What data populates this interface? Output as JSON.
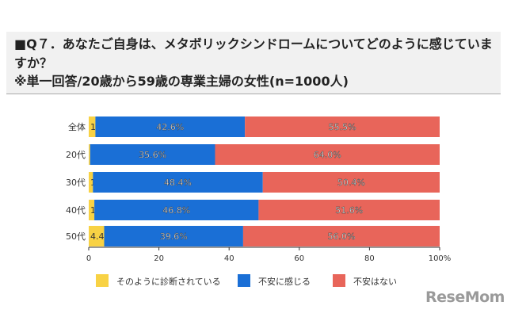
{
  "header": {
    "question": "■Q７．あなたご自身は、メタボリックシンドロームについてどのように感じていますか？",
    "subtitle": "※単一回答/20歳から59歳の専業主婦の女性(n=1000人)"
  },
  "chart_data": {
    "type": "bar",
    "orientation": "horizontal",
    "stacked": true,
    "categories": [
      "全体",
      "20代",
      "30代",
      "40代",
      "50代"
    ],
    "series": [
      {
        "name": "そのように診断されている",
        "color": "#f8d244",
        "values": [
          1.9,
          0.4,
          1.2,
          1.6,
          4.4
        ]
      },
      {
        "name": "不安に感じる",
        "color": "#1a6fd6",
        "values": [
          42.6,
          35.6,
          48.4,
          46.8,
          39.6
        ]
      },
      {
        "name": "不安はない",
        "color": "#e8655a",
        "values": [
          55.5,
          64.0,
          50.4,
          51.6,
          56.0
        ]
      }
    ],
    "xlim": [
      0,
      100
    ],
    "xticks": [
      "0",
      "20",
      "40",
      "60",
      "80",
      "100%"
    ],
    "legend": "bottom",
    "grid": false
  },
  "logo": "ReseMom"
}
